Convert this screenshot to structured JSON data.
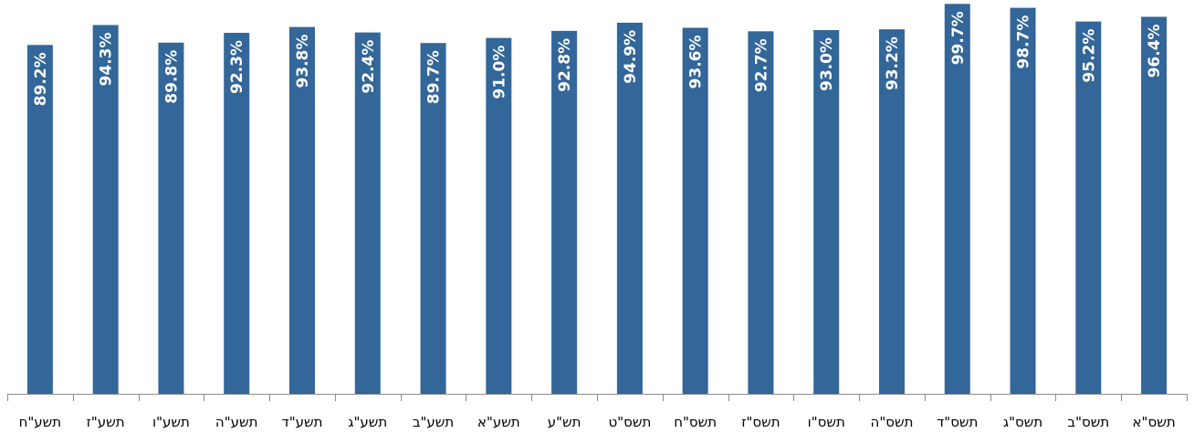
{
  "chart_data": {
    "type": "bar",
    "categories": [
      "תשע\"ח",
      "תשע\"ז",
      "תשע\"ו",
      "תשע\"ה",
      "תשע\"ד",
      "תשע\"ג",
      "תשע\"ב",
      "תשע\"א",
      "תש\"ע",
      "תשס\"ט",
      "תשס\"ח",
      "תשס\"ז",
      "תשס\"ו",
      "תשס\"ה",
      "תשס\"ד",
      "תשס\"ג",
      "תשס\"ב",
      "תשס\"א"
    ],
    "values": [
      89.2,
      94.3,
      89.8,
      92.3,
      93.8,
      92.4,
      89.7,
      91.0,
      92.8,
      94.9,
      93.6,
      92.7,
      93.0,
      93.2,
      99.7,
      98.7,
      95.2,
      96.4
    ],
    "value_labels": [
      "89.2%",
      "94.3%",
      "89.8%",
      "92.3%",
      "93.8%",
      "92.4%",
      "89.7%",
      "91.0%",
      "92.8%",
      "94.9%",
      "93.6%",
      "92.7%",
      "93.0%",
      "93.2%",
      "99.7%",
      "98.7%",
      "95.2%",
      "96.4%"
    ],
    "title": "",
    "xlabel": "",
    "ylabel": "",
    "ylim": [
      0,
      100
    ],
    "grid": false,
    "legend": "none",
    "bar_color": "#336699",
    "axis_color": "#8c8c8c"
  }
}
